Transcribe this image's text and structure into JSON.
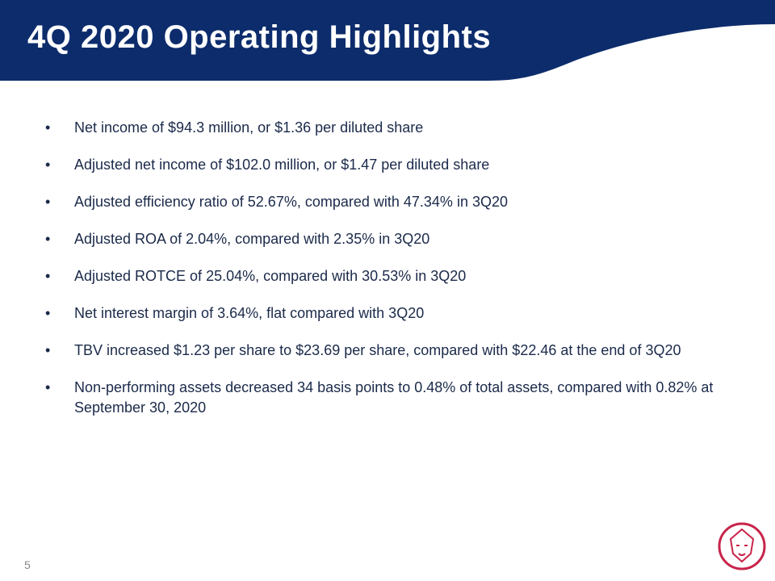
{
  "header": {
    "title": "4Q 2020 Operating Highlights"
  },
  "bullets": [
    "Net income of $94.3 million, or $1.36 per diluted share",
    "Adjusted net income of $102.0 million, or $1.47 per diluted share",
    "Adjusted efficiency ratio of 52.67%, compared with 47.34% in 3Q20",
    "Adjusted ROA of 2.04%, compared with 2.35% in 3Q20",
    "Adjusted ROTCE of 25.04%, compared with 30.53% in 3Q20",
    "Net interest margin of 3.64%, flat compared with 3Q20",
    "TBV increased $1.23 per share to $23.69 per share, compared with $22.46 at the end of 3Q20",
    "Non-performing assets decreased 34 basis points to 0.48% of total assets, compared with 0.82% at September 30, 2020"
  ],
  "footer": {
    "page_number": "5"
  }
}
